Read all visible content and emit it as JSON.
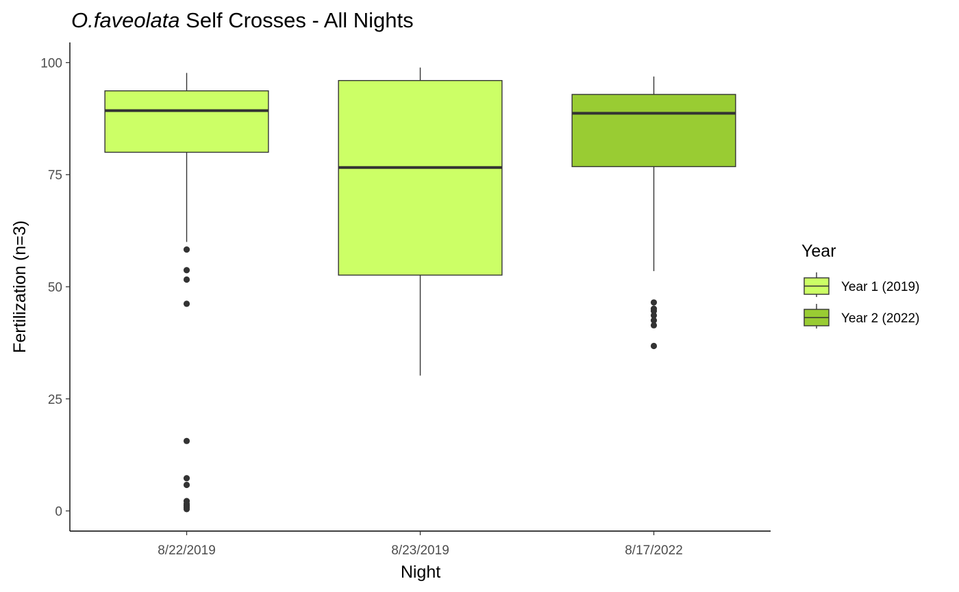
{
  "chart_data": {
    "type": "boxplot",
    "title_italic": "O.faveolata",
    "title_rest": " Self Crosses - All Nights",
    "xlabel": "Night",
    "ylabel": "Fertilization (n=3)",
    "ylim": [
      -4.5,
      104.5
    ],
    "yticks": [
      0,
      25,
      50,
      75,
      100
    ],
    "ytick_labels": [
      "0",
      "25",
      "50",
      "75",
      "100"
    ],
    "grid": false,
    "legend": {
      "title": "Year",
      "position": "right",
      "entries": [
        {
          "label": "Year 1 (2019)",
          "color": "#CCFF66"
        },
        {
          "label": "Year 2 (2022)",
          "color": "#99CC33"
        }
      ]
    },
    "categories": [
      "8/22/2019",
      "8/23/2019",
      "8/17/2022"
    ],
    "boxes": [
      {
        "category": "8/22/2019",
        "group": "Year 1 (2019)",
        "color": "#CCFF66",
        "whisker_low": 60,
        "q1": 80,
        "median": 89.3,
        "q3": 93.7,
        "whisker_high": 97.7,
        "outliers": [
          58.3,
          53.7,
          51.6,
          46.2,
          15.6,
          7.3,
          5.8,
          2.2,
          1.6,
          1.2,
          0.8,
          0.4
        ]
      },
      {
        "category": "8/23/2019",
        "group": "Year 1 (2019)",
        "color": "#CCFF66",
        "whisker_low": 30.2,
        "q1": 52.6,
        "median": 76.6,
        "q3": 96,
        "whisker_high": 98.9,
        "outliers": []
      },
      {
        "category": "8/17/2022",
        "group": "Year 2 (2022)",
        "color": "#99CC33",
        "whisker_low": 53.5,
        "q1": 76.8,
        "median": 88.7,
        "q3": 92.9,
        "whisker_high": 96.9,
        "outliers": [
          46.5,
          45.1,
          44.6,
          43.6,
          42.5,
          41.4,
          36.8
        ]
      }
    ]
  }
}
